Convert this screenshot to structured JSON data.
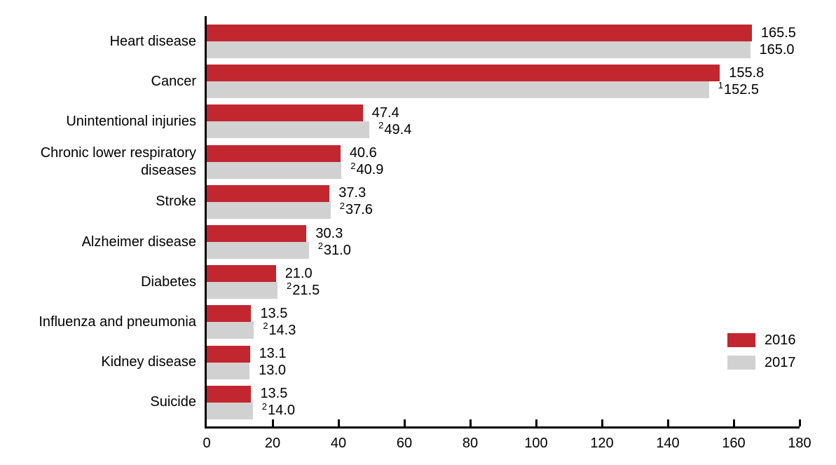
{
  "chart_data": {
    "type": "bar",
    "orientation": "horizontal",
    "title": "",
    "xlabel": "",
    "ylabel": "",
    "xlim": [
      0,
      180
    ],
    "x_ticks": [
      "0",
      "20",
      "40",
      "60",
      "80",
      "100",
      "120",
      "140",
      "160",
      "180"
    ],
    "grid": false,
    "legend_position": "lower-right",
    "categories": [
      "Heart disease",
      "Cancer",
      "Unintentional injuries",
      "Chronic lower respiratory diseases",
      "Stroke",
      "Alzheimer disease",
      "Diabetes",
      "Influenza and pneumonia",
      "Kidney disease",
      "Suicide"
    ],
    "series": [
      {
        "name": "2016",
        "color": "#C2262F",
        "points": [
          {
            "value": 165.5,
            "label": "165.5",
            "sup": ""
          },
          {
            "value": 155.8,
            "label": "155.8",
            "sup": ""
          },
          {
            "value": 47.4,
            "label": "47.4",
            "sup": ""
          },
          {
            "value": 40.6,
            "label": "40.6",
            "sup": ""
          },
          {
            "value": 37.3,
            "label": "37.3",
            "sup": ""
          },
          {
            "value": 30.3,
            "label": "30.3",
            "sup": ""
          },
          {
            "value": 21.0,
            "label": "21.0",
            "sup": ""
          },
          {
            "value": 13.5,
            "label": "13.5",
            "sup": ""
          },
          {
            "value": 13.1,
            "label": "13.1",
            "sup": ""
          },
          {
            "value": 13.5,
            "label": "13.5",
            "sup": ""
          }
        ]
      },
      {
        "name": "2017",
        "color": "#D1D1D1",
        "points": [
          {
            "value": 165.0,
            "label": "165.0",
            "sup": ""
          },
          {
            "value": 152.5,
            "label": "152.5",
            "sup": "1"
          },
          {
            "value": 49.4,
            "label": "49.4",
            "sup": "2"
          },
          {
            "value": 40.9,
            "label": "40.9",
            "sup": "2"
          },
          {
            "value": 37.6,
            "label": "37.6",
            "sup": "2"
          },
          {
            "value": 31.0,
            "label": "31.0",
            "sup": "2"
          },
          {
            "value": 21.5,
            "label": "21.5",
            "sup": "2"
          },
          {
            "value": 14.3,
            "label": "14.3",
            "sup": "2"
          },
          {
            "value": 13.0,
            "label": "13.0",
            "sup": ""
          },
          {
            "value": 14.0,
            "label": "14.0",
            "sup": "2"
          }
        ]
      }
    ],
    "legend": {
      "entries": [
        {
          "label": "2016",
          "color": "#C2262F"
        },
        {
          "label": "2017",
          "color": "#D1D1D1"
        }
      ]
    }
  }
}
